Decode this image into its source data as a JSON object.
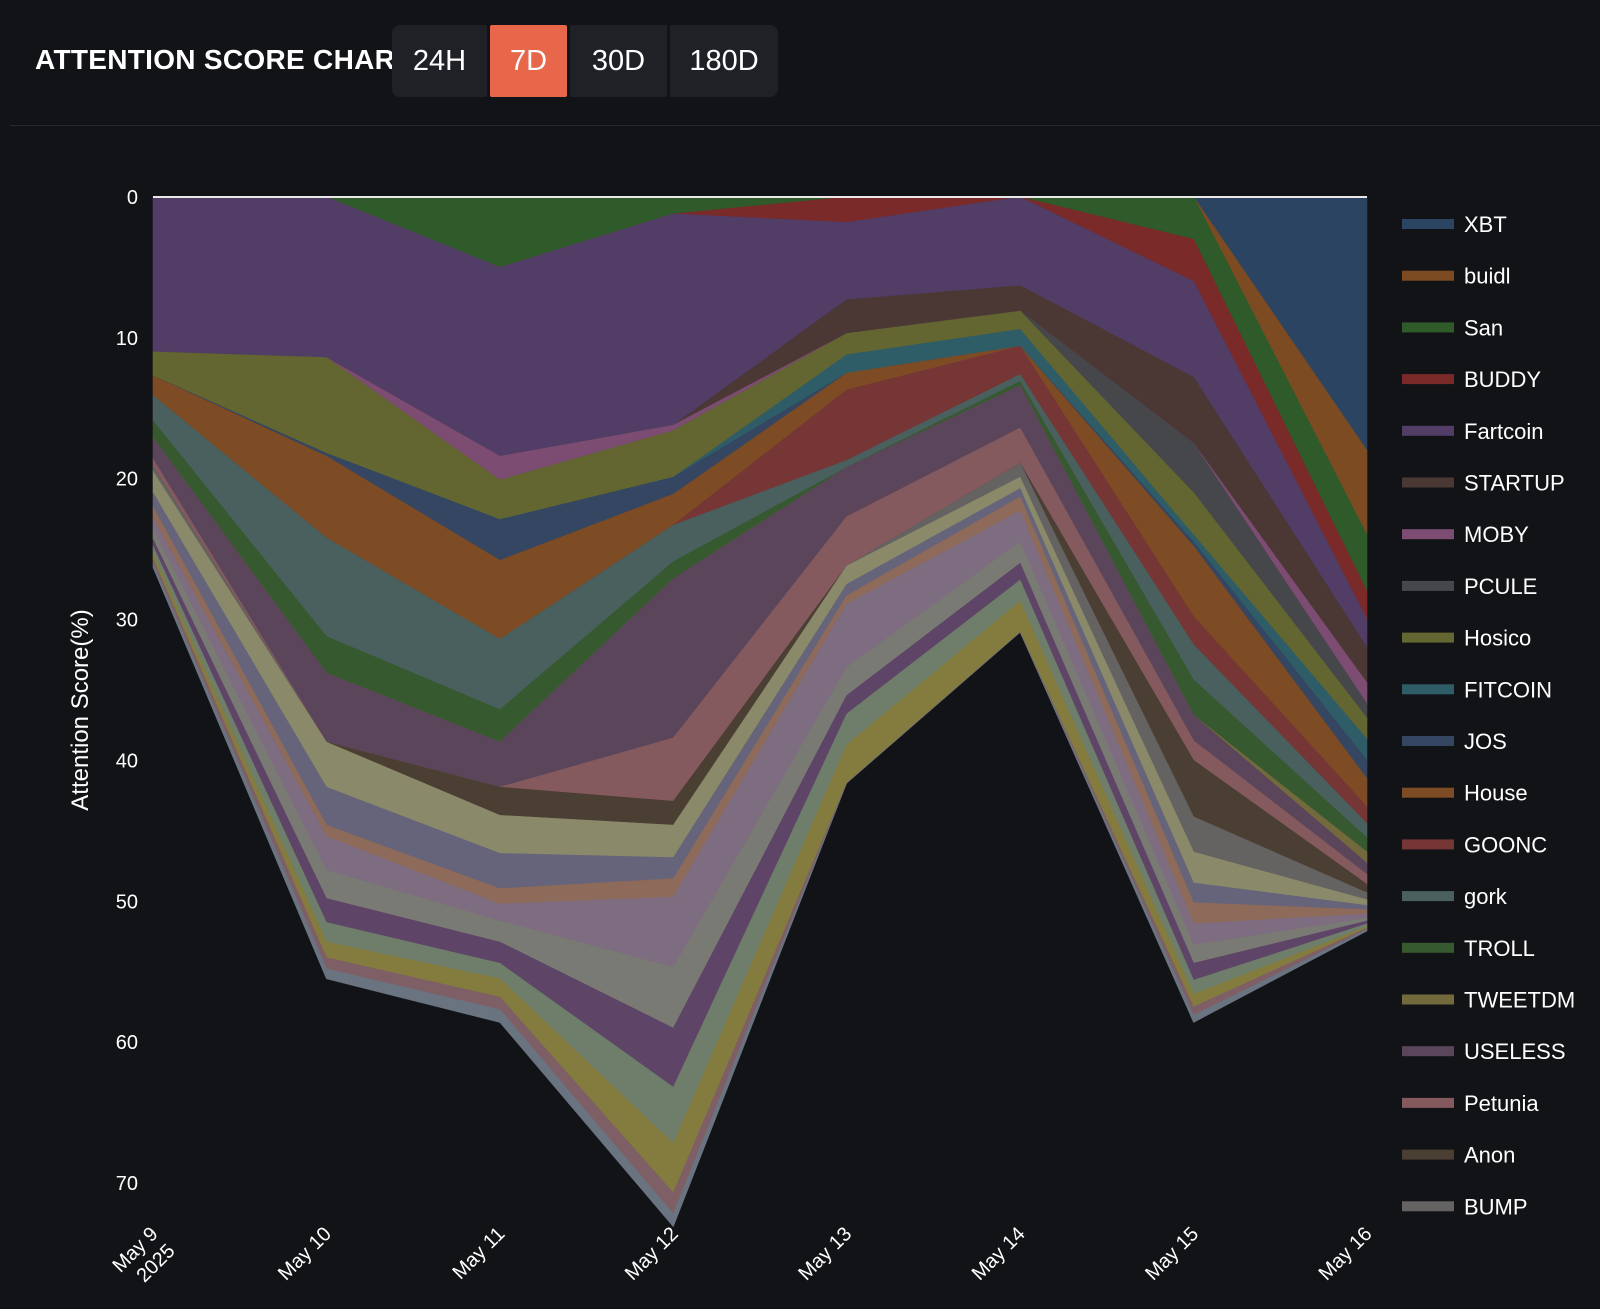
{
  "header": {
    "title": "ATTENTION SCORE CHART",
    "tabs": [
      {
        "label": "24H",
        "active": false
      },
      {
        "label": "7D",
        "active": true
      },
      {
        "label": "30D",
        "active": false
      },
      {
        "label": "180D",
        "active": false
      }
    ]
  },
  "colors": {
    "background": "#121317",
    "active_tab": "#e8664a",
    "tab": "#1f2126",
    "text": "#ffffff"
  },
  "chart_data": {
    "type": "area",
    "stacked": true,
    "y_inverted": true,
    "ylabel": "Attention Score(%)",
    "ylim": [
      0,
      70
    ],
    "yticks": [
      0,
      10,
      20,
      30,
      40,
      50,
      60,
      70
    ],
    "categories": [
      "May 9\n2025",
      "May 10",
      "May 11",
      "May 12",
      "May 13",
      "May 14",
      "May 15",
      "May 16"
    ],
    "legend_position": "right",
    "series": [
      {
        "name": "XBT",
        "color": "#2a4461",
        "values": [
          0,
          0,
          0,
          0,
          0,
          0,
          0,
          18
        ]
      },
      {
        "name": "buidl",
        "color": "#7d4b22",
        "values": [
          0,
          0,
          0,
          0,
          0,
          0,
          0,
          6
        ]
      },
      {
        "name": "San",
        "color": "#2f5a2a",
        "values": [
          0,
          0,
          5,
          1.2,
          0,
          0,
          3,
          4
        ]
      },
      {
        "name": "BUDDY",
        "color": "#7a2a28",
        "values": [
          0,
          0,
          0,
          0,
          1.8,
          0,
          3,
          2
        ]
      },
      {
        "name": "Fartcoin",
        "color": "#513d66",
        "values": [
          11,
          11.4,
          13.4,
          15,
          5.5,
          6.3,
          6.8,
          2
        ]
      },
      {
        "name": "STARTUP",
        "color": "#4b3834",
        "values": [
          0,
          0,
          0,
          0,
          2.4,
          1.8,
          4.7,
          2.5
        ]
      },
      {
        "name": "MOBY",
        "color": "#7d4c72",
        "values": [
          0,
          0,
          1.7,
          0.4,
          0,
          0,
          0,
          1.5
        ]
      },
      {
        "name": "PCULE",
        "color": "#45474b",
        "values": [
          0,
          0,
          0,
          0,
          0,
          0,
          3.5,
          1
        ]
      },
      {
        "name": "Hosico",
        "color": "#636630",
        "values": [
          1.7,
          6.8,
          2.8,
          3.3,
          1.5,
          1.3,
          3,
          1.5
        ]
      },
      {
        "name": "FITCOIN",
        "color": "#2f5d67",
        "values": [
          0,
          0,
          0,
          0,
          1.3,
          1.2,
          0.5,
          1.5
        ]
      },
      {
        "name": "JOS",
        "color": "#344661",
        "values": [
          0,
          0.2,
          2.9,
          1.2,
          0,
          0,
          0.3,
          1.3
        ]
      },
      {
        "name": "House",
        "color": "#7d4b24",
        "values": [
          1.4,
          5.8,
          5.6,
          2.2,
          1.2,
          0,
          5,
          2
        ]
      },
      {
        "name": "GOONC",
        "color": "#763636",
        "values": [
          0,
          0,
          0,
          0,
          5,
          2,
          2,
          1.2
        ]
      },
      {
        "name": "gork",
        "color": "#49605e",
        "values": [
          1.8,
          7,
          5,
          2.6,
          0.5,
          0.5,
          2.5,
          1
        ]
      },
      {
        "name": "TROLL",
        "color": "#37592f",
        "values": [
          1.2,
          2.6,
          2.3,
          1.2,
          0,
          0.3,
          2.5,
          1
        ]
      },
      {
        "name": "TWEETDM",
        "color": "#726a3c",
        "values": [
          0,
          0,
          0,
          0,
          0,
          0,
          0,
          0.8
        ]
      },
      {
        "name": "USELESS",
        "color": "#5b455b",
        "values": [
          1.5,
          4.9,
          3.2,
          11.3,
          3.5,
          3,
          1.8,
          0.8
        ]
      },
      {
        "name": "Petunia",
        "color": "#845a5e",
        "values": [
          0.5,
          0,
          0,
          4.5,
          3.5,
          2.5,
          1.4,
          0.7
        ]
      },
      {
        "name": "Anon",
        "color": "#4b3e33",
        "values": [
          0,
          0,
          2,
          1.7,
          0,
          0,
          4,
          0.6
        ]
      },
      {
        "name": "BUMP",
        "color": "#656262",
        "values": [
          0.4,
          0,
          0,
          0,
          0,
          1,
          2.5,
          0.5
        ]
      },
      {
        "name": "",
        "color": "#8a8a6a",
        "values": [
          1.5,
          3.2,
          2.7,
          2.3,
          1.3,
          0.8,
          2.2,
          0.4
        ]
      },
      {
        "name": "",
        "color": "#66647a",
        "values": [
          1,
          2.7,
          2.5,
          1.5,
          0.8,
          0.6,
          1.4,
          0.3
        ]
      },
      {
        "name": "",
        "color": "#8d6a5a",
        "values": [
          0.8,
          0.8,
          1.1,
          1.3,
          0.6,
          1,
          1.5,
          0.3
        ]
      },
      {
        "name": "",
        "color": "#7e6c80",
        "values": [
          0.8,
          2.4,
          1.2,
          5,
          4.5,
          2.2,
          1.5,
          0.3
        ]
      },
      {
        "name": "",
        "color": "#7a7a74",
        "values": [
          0.7,
          2,
          1.5,
          4.3,
          2,
          1.5,
          1.3,
          0.2
        ]
      },
      {
        "name": "",
        "color": "#5e4466",
        "values": [
          0.5,
          1.7,
          1.5,
          4.2,
          1.3,
          1.2,
          1.2,
          0.2
        ]
      },
      {
        "name": "",
        "color": "#6e7e6a",
        "values": [
          0.5,
          1.4,
          1.1,
          4,
          2.2,
          1.5,
          1,
          0.2
        ]
      },
      {
        "name": "",
        "color": "#847c3e",
        "values": [
          0.4,
          1.1,
          1.3,
          3.5,
          2.7,
          2.2,
          0.9,
          0.1
        ]
      },
      {
        "name": "",
        "color": "#7f5f66",
        "values": [
          0.3,
          0.8,
          0.9,
          1.5,
          0,
          0,
          0.6,
          0.1
        ]
      },
      {
        "name": "",
        "color": "#6a7480",
        "values": [
          0.3,
          0.7,
          0.9,
          0.9,
          0,
          0,
          0.5,
          0.1
        ]
      }
    ]
  }
}
